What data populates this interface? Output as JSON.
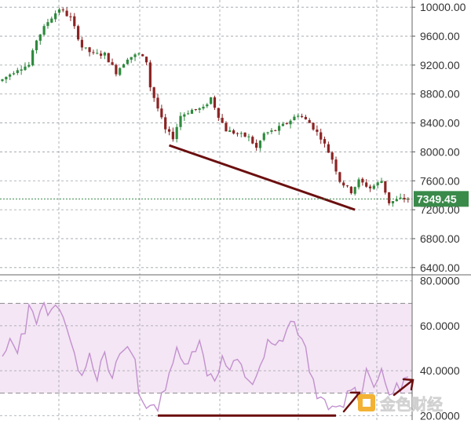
{
  "chart_data": [
    {
      "type": "candlestick",
      "ylim": [
        6300,
        10100
      ],
      "y_ticks": [
        "10000.00",
        "9600.00",
        "9200.00",
        "8800.00",
        "8400.00",
        "8000.00",
        "7600.00",
        "7200.00",
        "6800.00",
        "6400.00"
      ],
      "y_tick_values": [
        10000,
        9600,
        9200,
        8800,
        8400,
        8000,
        7600,
        7200,
        6800,
        6400
      ],
      "grid": true,
      "current_price": 7349.45,
      "current_price_label": "7349.45",
      "trendline": {
        "from": [
          44,
          8090
        ],
        "to": [
          93,
          7200
        ]
      },
      "anchors": [
        [
          0,
          9000
        ],
        [
          4,
          9150
        ],
        [
          7,
          9200
        ],
        [
          9,
          9550
        ],
        [
          12,
          9800
        ],
        [
          15,
          9980
        ],
        [
          18,
          9850
        ],
        [
          21,
          9450
        ],
        [
          24,
          9350
        ],
        [
          27,
          9350
        ],
        [
          30,
          9100
        ],
        [
          33,
          9300
        ],
        [
          36,
          9350
        ],
        [
          38,
          9250
        ],
        [
          39,
          8900
        ],
        [
          41,
          8600
        ],
        [
          43,
          8300
        ],
        [
          45,
          8200
        ],
        [
          47,
          8500
        ],
        [
          50,
          8580
        ],
        [
          53,
          8600
        ],
        [
          55,
          8750
        ],
        [
          57,
          8500
        ],
        [
          59,
          8300
        ],
        [
          62,
          8250
        ],
        [
          65,
          8200
        ],
        [
          67,
          8050
        ],
        [
          69,
          8250
        ],
        [
          72,
          8300
        ],
        [
          75,
          8400
        ],
        [
          78,
          8520
        ],
        [
          81,
          8400
        ],
        [
          84,
          8200
        ],
        [
          87,
          7900
        ],
        [
          89,
          7600
        ],
        [
          92,
          7450
        ],
        [
          94,
          7600
        ],
        [
          97,
          7500
        ],
        [
          100,
          7600
        ],
        [
          102,
          7300
        ],
        [
          105,
          7350
        ],
        [
          107,
          7350
        ]
      ],
      "colors": {
        "up": "#2f8a3e",
        "down": "#8b2424",
        "label_bg": "#3a8a4a",
        "trendline": "#6b0f0f"
      }
    },
    {
      "type": "line",
      "series": [
        {
          "values_ref": "rsi"
        }
      ],
      "ylim": [
        18,
        82
      ],
      "y_ticks": [
        "80.0000",
        "60.0000",
        "40.0000",
        "20.0000"
      ],
      "y_tick_values": [
        80,
        60,
        40,
        20
      ],
      "band": [
        30,
        70
      ],
      "anchors": [
        [
          0,
          45
        ],
        [
          2,
          52
        ],
        [
          4,
          50
        ],
        [
          6,
          58
        ],
        [
          7,
          72
        ],
        [
          9,
          62
        ],
        [
          11,
          68
        ],
        [
          13,
          66
        ],
        [
          15,
          70
        ],
        [
          17,
          60
        ],
        [
          19,
          45
        ],
        [
          21,
          40
        ],
        [
          23,
          48
        ],
        [
          25,
          38
        ],
        [
          27,
          46
        ],
        [
          29,
          35
        ],
        [
          31,
          48
        ],
        [
          33,
          50
        ],
        [
          35,
          45
        ],
        [
          36,
          30
        ],
        [
          38,
          25
        ],
        [
          40,
          22
        ],
        [
          42,
          28
        ],
        [
          44,
          40
        ],
        [
          46,
          48
        ],
        [
          48,
          42
        ],
        [
          50,
          50
        ],
        [
          52,
          52
        ],
        [
          54,
          40
        ],
        [
          56,
          37
        ],
        [
          58,
          45
        ],
        [
          60,
          40
        ],
        [
          62,
          44
        ],
        [
          64,
          38
        ],
        [
          66,
          35
        ],
        [
          68,
          40
        ],
        [
          70,
          52
        ],
        [
          72,
          50
        ],
        [
          74,
          55
        ],
        [
          76,
          62
        ],
        [
          78,
          58
        ],
        [
          80,
          48
        ],
        [
          82,
          35
        ],
        [
          84,
          26
        ],
        [
          86,
          23
        ],
        [
          88,
          22
        ],
        [
          90,
          25
        ],
        [
          92,
          34
        ],
        [
          94,
          28
        ],
        [
          96,
          40
        ],
        [
          98,
          35
        ],
        [
          100,
          38
        ],
        [
          102,
          30
        ],
        [
          104,
          32
        ],
        [
          107,
          37
        ]
      ],
      "trendline": {
        "from": [
          41,
          20
        ],
        "to": [
          88,
          20
        ]
      },
      "colors": {
        "line": "#c290cf",
        "band": "#f4e6f4",
        "band_line": "#8a8a8a",
        "trendline": "#6b0f0f",
        "arrow": "#6b0f0f"
      }
    }
  ],
  "watermark": {
    "text": "金色财经",
    "color": "#f3b234"
  }
}
